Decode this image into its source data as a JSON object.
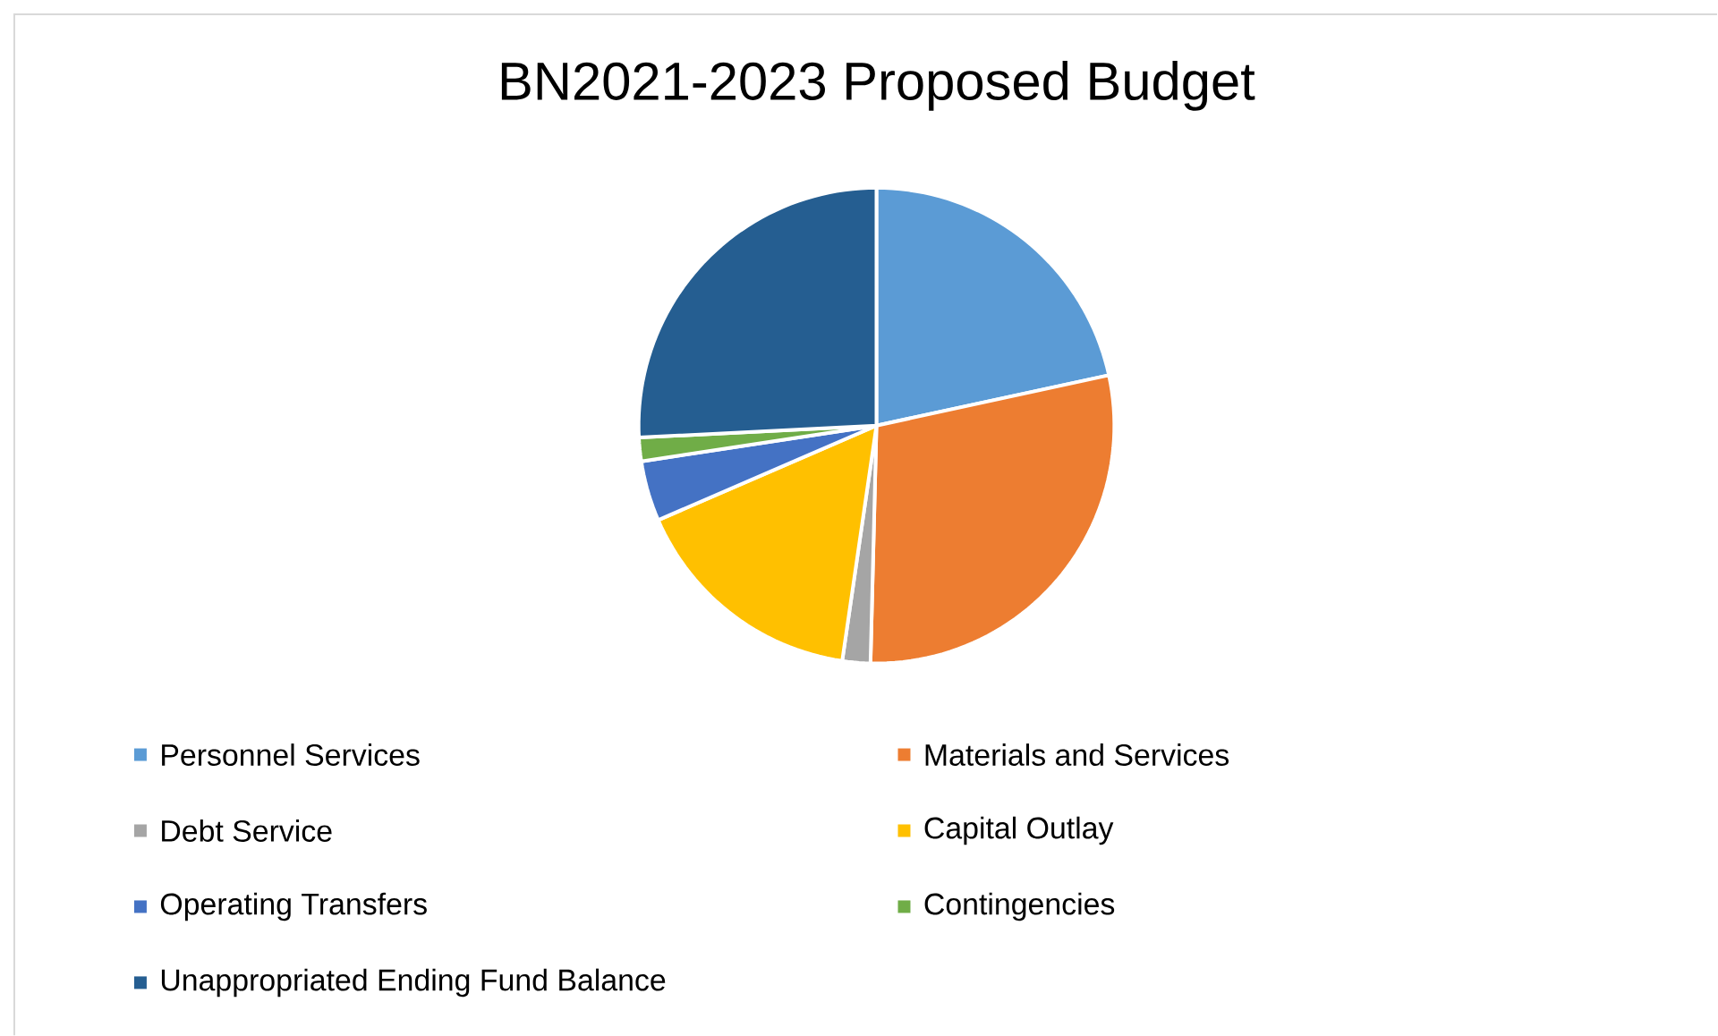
{
  "chart_data": {
    "type": "pie",
    "title": "BN2021-2023 Proposed Budget",
    "categories": [
      "Personnel Services",
      "Materials and Services",
      "Debt Service",
      "Capital Outlay",
      "Operating Transfers",
      "Contingencies",
      "Unappropriated Ending Fund Balance"
    ],
    "values": [
      21.6,
      28.8,
      1.9,
      16.2,
      4.1,
      1.6,
      25.8
    ],
    "colors": [
      "#5b9bd5",
      "#ed7d31",
      "#a5a5a5",
      "#ffc000",
      "#4472c4",
      "#70ad47",
      "#255e91"
    ],
    "legend": "bottom"
  }
}
